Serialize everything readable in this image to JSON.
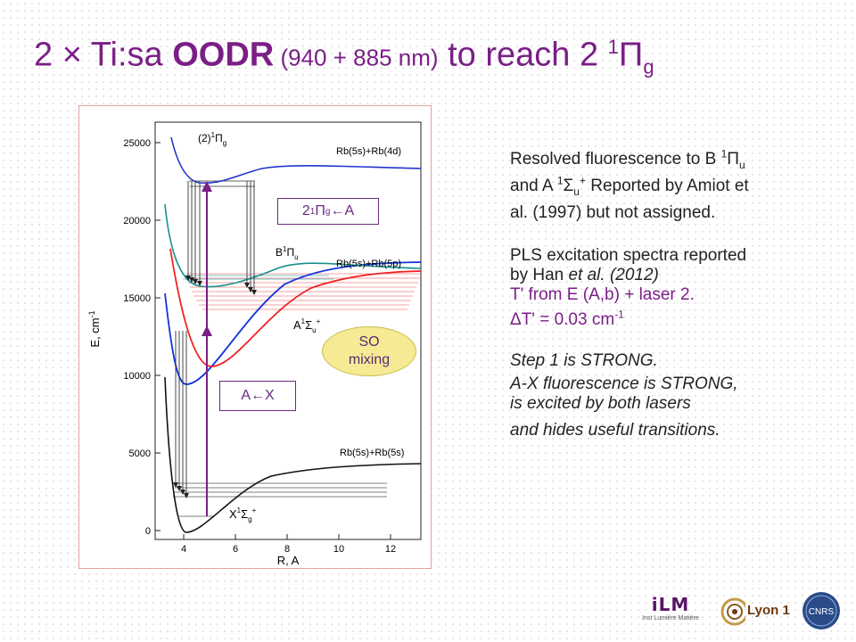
{
  "title": {
    "part1": "2 × Ti:sa ",
    "bold": "OODR",
    "paren": " (940 + 885 nm)",
    "part2": " to reach 2 ",
    "sup": "1",
    "pi": "Π",
    "sub": "g"
  },
  "figure": {
    "y_axis_label": "E, cm",
    "y_axis_label_sup": "-1",
    "x_axis_label": "R, A",
    "y_ticks": [
      "0",
      "5000",
      "10000",
      "15000",
      "20000",
      "25000"
    ],
    "x_ticks": [
      "4",
      "6",
      "8",
      "10",
      "12"
    ],
    "curve_labels": {
      "top_state": "(2)",
      "top_state_sup": "1",
      "top_state_pi": "Π",
      "top_state_sub": "g",
      "top_asymptote": "Rb(5s)+Rb(4d)",
      "b_state": "B",
      "b_state_sup": "1",
      "b_state_pi": "Π",
      "b_state_sub": "u",
      "mid_asymptote": "Rb(5s)+Rb(5p)",
      "a_state": "A",
      "a_state_sup": "1",
      "a_state_sigma": "Σ",
      "a_state_sub": "u",
      "a_state_sup2": "+",
      "x_state": "X",
      "x_state_sup": "1",
      "x_state_sigma": "Σ",
      "x_state_sub": "g",
      "x_state_sup2": "+",
      "ground_asymptote": "Rb(5s)+Rb(5s)"
    },
    "callouts": {
      "ga_pre": "2 ",
      "ga_sup": "1",
      "ga_pi": "Π",
      "ga_sub": "g",
      "ga_post": " ←A",
      "ax": "A←X",
      "so_line1": "SO",
      "so_line2": "mixing"
    },
    "colors": {
      "top_curve": "#2233cc",
      "b_curve": "#1a8f8f",
      "a_red": "#ee2222",
      "a_blue": "#1133dd",
      "ground": "#111111",
      "pump_arrow": "#7a1f86",
      "accent": "#7a1f86"
    }
  },
  "text": {
    "p1_a": "Resolved fluorescence to B ",
    "p1_sup1": "1",
    "p1_pi": "Π",
    "p1_sub1": "u",
    "p1_b": "and A ",
    "p1_sup2": "1",
    "p1_sigma": "Σ",
    "p1_sub2": "u",
    "p1_sup3": "+",
    "p1_c": "  Reported by Amiot et",
    "p1_d": "al. (1997) but not assigned.",
    "p2_a": "PLS excitation spectra reported",
    "p2_b": "by Han ",
    "p2_b_it": "et al. (2012)",
    "p2_c": "T' from E (A,b) + laser 2.",
    "p2_d_delta": "Δ",
    "p2_d": "T' = 0.03 cm",
    "p2_d_sup": "-1",
    "p3_a": "Step 1 is STRONG.",
    "p3_b": "A-X fluorescence is STRONG,",
    "p3_c": "is excited by both lasers",
    "p3_d": "and hides useful transitions."
  },
  "logos": {
    "ilm": "iLM",
    "ilm_sub": "Inst Lumière Matière",
    "lyon": "Lyon 1",
    "cnrs": "CNRS"
  }
}
